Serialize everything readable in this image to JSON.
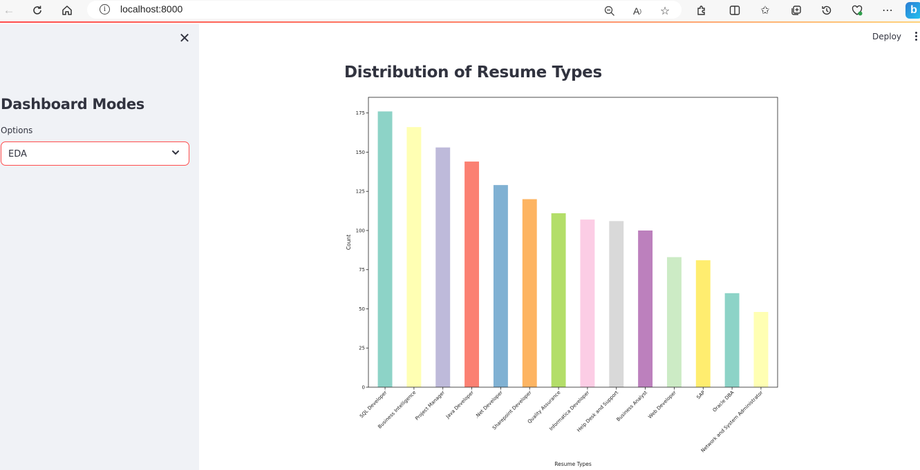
{
  "browser": {
    "url": "localhost:8000"
  },
  "sidebar": {
    "title": "Dashboard Modes",
    "options_label": "Options",
    "selected_option": "EDA"
  },
  "header": {
    "deploy_label": "Deploy"
  },
  "main": {
    "title": "Distribution of Resume Types"
  },
  "chart_data": {
    "type": "bar",
    "title": "",
    "xlabel": "Resume Types",
    "ylabel": "Count",
    "ylim": [
      0,
      185
    ],
    "yticks": [
      0,
      25,
      50,
      75,
      100,
      125,
      150,
      175
    ],
    "grid": false,
    "categories": [
      "SQL Developer",
      "Business Intelligence",
      "Project Manager",
      "Java Developer",
      ".Net Developer",
      "Sharepoint Developer",
      "Quality Assurance",
      "Informatica Developer",
      "Help Desk and Support",
      "Business Analyst",
      "Web Developer",
      "SAP",
      "Oracle DBA",
      "Network and System Administrator"
    ],
    "values": [
      176,
      166,
      153,
      144,
      129,
      120,
      111,
      107,
      106,
      100,
      83,
      81,
      60,
      48
    ],
    "colors": [
      "#8dd3c7",
      "#ffffb3",
      "#bebada",
      "#fb8072",
      "#80b1d3",
      "#fdb462",
      "#b3de69",
      "#fccde5",
      "#d9d9d9",
      "#bc80bd",
      "#ccebc5",
      "#ffed6f",
      "#8dd3c7",
      "#ffffb3"
    ]
  }
}
